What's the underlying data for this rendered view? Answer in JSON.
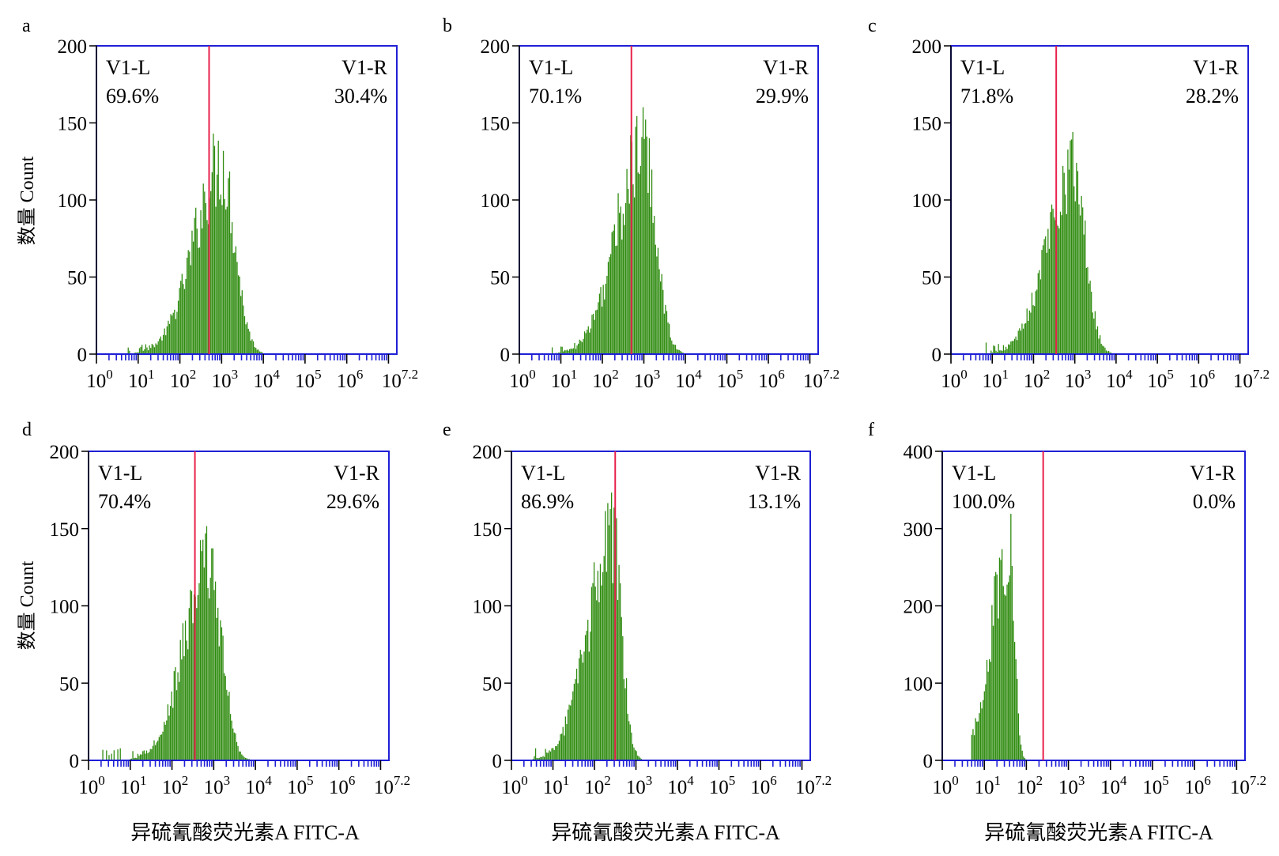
{
  "figure": {
    "ylabel": "数量 Count",
    "xlabel": "异硫氰酸荧光素A FITC-A",
    "x_tick_labels": [
      {
        "base": "10",
        "exp": "0"
      },
      {
        "base": "10",
        "exp": "1"
      },
      {
        "base": "10",
        "exp": "2"
      },
      {
        "base": "10",
        "exp": "3"
      },
      {
        "base": "10",
        "exp": "4"
      },
      {
        "base": "10",
        "exp": "5"
      },
      {
        "base": "10",
        "exp": "6"
      },
      {
        "base": "10",
        "exp": "7.2"
      }
    ]
  },
  "colors": {
    "histogram": "#2e8b0e",
    "gate_line": "#e8214b",
    "axis": "#1f1fd6",
    "background": "#ffffff"
  },
  "chart_data": [
    {
      "panel_label": "a",
      "type": "histogram",
      "x_scale": "log10",
      "xlim_exp": [
        0,
        7.2
      ],
      "ylim": [
        0,
        200
      ],
      "yticks": [
        0,
        50,
        100,
        150,
        200
      ],
      "gate_exp": 2.7,
      "gate_regions": [
        {
          "name": "V1-L",
          "percent": "69.6%"
        },
        {
          "name": "V1-R",
          "percent": "30.4%"
        }
      ],
      "peak_exp": 3.0,
      "peak_count": 130,
      "spread_left": 0.65,
      "spread_right": 0.32,
      "tail_start_exp": 0.7
    },
    {
      "panel_label": "b",
      "type": "histogram",
      "x_scale": "log10",
      "xlim_exp": [
        0,
        7.2
      ],
      "ylim": [
        0,
        200
      ],
      "yticks": [
        0,
        50,
        100,
        150,
        200
      ],
      "gate_exp": 2.7,
      "gate_regions": [
        {
          "name": "V1-L",
          "percent": "70.1%"
        },
        {
          "name": "V1-R",
          "percent": "29.9%"
        }
      ],
      "peak_exp": 3.0,
      "peak_count": 140,
      "spread_left": 0.65,
      "spread_right": 0.3,
      "tail_start_exp": 0.7
    },
    {
      "panel_label": "c",
      "type": "histogram",
      "x_scale": "log10",
      "xlim_exp": [
        0,
        7.2
      ],
      "ylim": [
        0,
        200
      ],
      "yticks": [
        0,
        50,
        100,
        150,
        200
      ],
      "gate_exp": 2.55,
      "gate_regions": [
        {
          "name": "V1-L",
          "percent": "71.8%"
        },
        {
          "name": "V1-R",
          "percent": "28.2%"
        }
      ],
      "peak_exp": 2.95,
      "peak_count": 128,
      "spread_left": 0.62,
      "spread_right": 0.3,
      "tail_start_exp": 0.7
    },
    {
      "panel_label": "d",
      "type": "histogram",
      "x_scale": "log10",
      "xlim_exp": [
        0,
        7.2
      ],
      "ylim": [
        0,
        200
      ],
      "yticks": [
        0,
        50,
        100,
        150,
        200
      ],
      "gate_exp": 2.55,
      "gate_regions": [
        {
          "name": "V1-L",
          "percent": "70.4%"
        },
        {
          "name": "V1-R",
          "percent": "29.6%"
        }
      ],
      "peak_exp": 2.9,
      "peak_count": 135,
      "spread_left": 0.6,
      "spread_right": 0.3,
      "tail_start_exp": 0.3
    },
    {
      "panel_label": "e",
      "type": "histogram",
      "x_scale": "log10",
      "xlim_exp": [
        0,
        7.2
      ],
      "ylim": [
        0,
        200
      ],
      "yticks": [
        0,
        50,
        100,
        150,
        200
      ],
      "gate_exp": 2.5,
      "gate_regions": [
        {
          "name": "V1-L",
          "percent": "86.9%"
        },
        {
          "name": "V1-R",
          "percent": "13.1%"
        }
      ],
      "peak_exp": 2.45,
      "peak_count": 150,
      "spread_left": 0.6,
      "spread_right": 0.22,
      "tail_start_exp": 0.5
    },
    {
      "panel_label": "f",
      "type": "histogram",
      "x_scale": "log10",
      "xlim_exp": [
        0,
        7.2
      ],
      "ylim": [
        0,
        400
      ],
      "yticks": [
        0,
        100,
        200,
        300,
        400
      ],
      "gate_exp": 2.4,
      "gate_regions": [
        {
          "name": "V1-L",
          "percent": "100.0%"
        },
        {
          "name": "V1-R",
          "percent": "0.0%"
        }
      ],
      "peak_exp": 1.6,
      "peak_count": 300,
      "spread_left": 0.42,
      "spread_right": 0.12,
      "tail_start_exp": 0.7
    }
  ]
}
